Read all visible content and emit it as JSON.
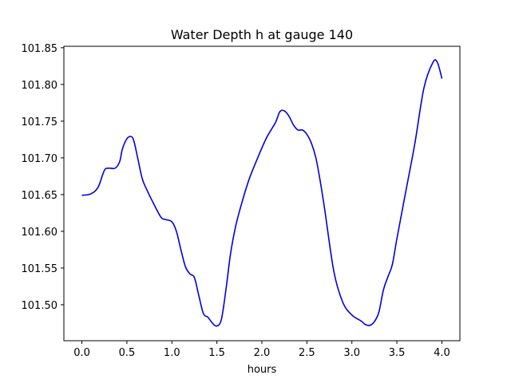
{
  "chart_data": {
    "type": "line",
    "title": "Water Depth h at gauge 140",
    "xlabel": "hours",
    "ylabel": "",
    "xlim": [
      -0.2,
      4.2
    ],
    "ylim": [
      101.451,
      101.852
    ],
    "xticks": [
      0.0,
      0.5,
      1.0,
      1.5,
      2.0,
      2.5,
      3.0,
      3.5,
      4.0
    ],
    "xtick_labels": [
      "0.0",
      "0.5",
      "1.0",
      "1.5",
      "2.0",
      "2.5",
      "3.0",
      "3.5",
      "4.0"
    ],
    "yticks": [
      101.5,
      101.55,
      101.6,
      101.65,
      101.7,
      101.75,
      101.8,
      101.85
    ],
    "ytick_labels": [
      "101.50",
      "101.55",
      "101.60",
      "101.65",
      "101.70",
      "101.75",
      "101.80",
      "101.85"
    ],
    "grid": false,
    "series": [
      {
        "color": "#0000dd",
        "x": [
          0.0,
          0.1,
          0.18,
          0.25,
          0.3,
          0.37,
          0.42,
          0.45,
          0.5,
          0.55,
          0.58,
          0.62,
          0.67,
          0.72,
          0.8,
          0.88,
          0.93,
          1.0,
          1.05,
          1.1,
          1.15,
          1.2,
          1.25,
          1.3,
          1.35,
          1.4,
          1.45,
          1.5,
          1.55,
          1.6,
          1.65,
          1.7,
          1.75,
          1.85,
          1.95,
          2.05,
          2.15,
          2.2,
          2.25,
          2.3,
          2.35,
          2.4,
          2.45,
          2.5,
          2.55,
          2.6,
          2.65,
          2.7,
          2.8,
          2.9,
          3.0,
          3.1,
          3.15,
          3.2,
          3.25,
          3.3,
          3.35,
          3.4,
          3.45,
          3.5,
          3.6,
          3.7,
          3.8,
          3.9,
          3.95,
          4.0
        ],
        "y": [
          101.649,
          101.651,
          101.66,
          101.683,
          101.686,
          101.686,
          101.695,
          101.712,
          101.726,
          101.729,
          101.722,
          101.7,
          101.672,
          101.657,
          101.637,
          101.619,
          101.616,
          101.613,
          101.6,
          101.575,
          101.552,
          101.542,
          101.537,
          101.512,
          101.488,
          101.483,
          101.475,
          101.471,
          101.48,
          101.52,
          101.568,
          101.602,
          101.627,
          101.668,
          101.699,
          101.727,
          101.748,
          101.763,
          101.764,
          101.757,
          101.745,
          101.738,
          101.738,
          101.732,
          101.72,
          101.7,
          101.667,
          101.628,
          101.545,
          101.503,
          101.486,
          101.478,
          101.473,
          101.472,
          101.477,
          101.49,
          101.52,
          101.538,
          101.555,
          101.59,
          101.655,
          101.72,
          101.795,
          101.83,
          101.83,
          101.808
        ]
      }
    ]
  }
}
